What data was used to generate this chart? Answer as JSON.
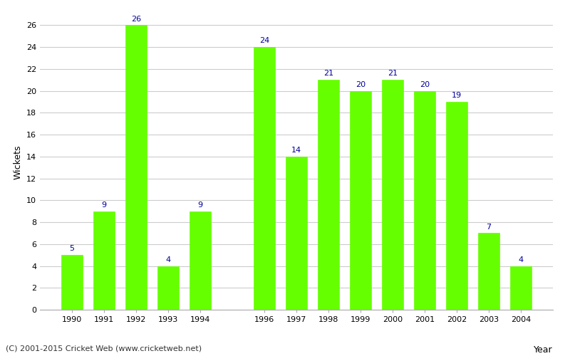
{
  "years": [
    1990,
    1991,
    1992,
    1993,
    1994,
    1996,
    1997,
    1998,
    1999,
    2000,
    2001,
    2002,
    2003,
    2004
  ],
  "wickets": [
    5,
    9,
    26,
    4,
    9,
    24,
    14,
    21,
    20,
    21,
    20,
    19,
    7,
    4
  ],
  "bar_color": "#66ff00",
  "bar_edge_color": "#66ff00",
  "label_color": "#000099",
  "label_fontsize": 8,
  "xlabel": "Year",
  "ylabel": "Wickets",
  "ylim": [
    0,
    27
  ],
  "yticks": [
    0,
    2,
    4,
    6,
    8,
    10,
    12,
    14,
    16,
    18,
    20,
    22,
    24,
    26
  ],
  "grid_color": "#cccccc",
  "background_color": "#ffffff",
  "footer": "(C) 2001-2015 Cricket Web (www.cricketweb.net)",
  "footer_fontsize": 8,
  "xlabel_fontsize": 9,
  "ylabel_fontsize": 9,
  "tick_fontsize": 8,
  "bar_width": 0.65
}
